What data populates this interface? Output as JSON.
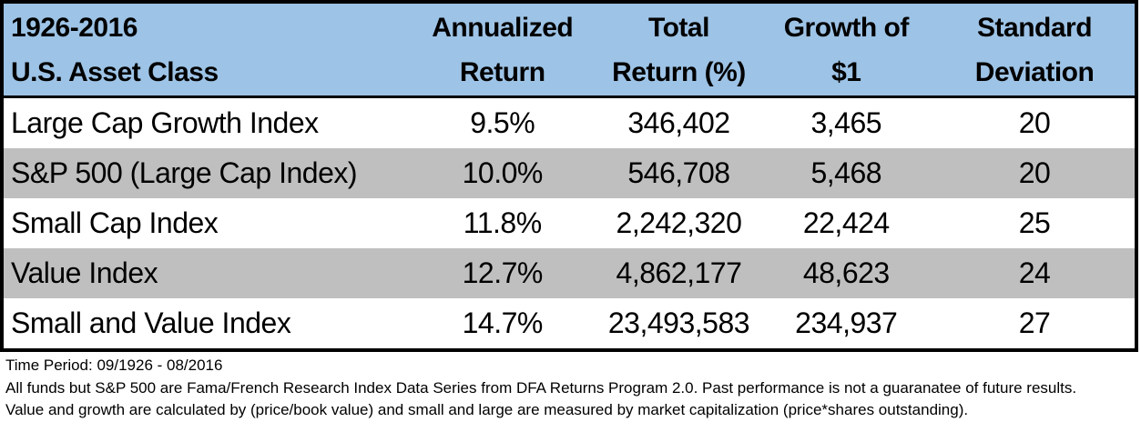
{
  "colors": {
    "header_bg": "#9DC3E6",
    "stripe_bg": "#BFBFBF",
    "row_bg": "#FFFFFF",
    "border": "#000000",
    "text": "#000000"
  },
  "chart_data": {
    "type": "table",
    "title": "1926-2016 U.S. Asset Class",
    "columns": [
      "1926-2016 U.S. Asset Class",
      "Annualized Return",
      "Total Return (%)",
      "Growth of $1",
      "Standard Deviation"
    ],
    "rows": [
      {
        "asset_class": "Large Cap Growth Index",
        "annualized_return_pct": 9.5,
        "total_return_pct": 346402,
        "growth_of_dollar": 3465,
        "standard_deviation": 20
      },
      {
        "asset_class": "S&P 500 (Large Cap Index)",
        "annualized_return_pct": 10.0,
        "total_return_pct": 546708,
        "growth_of_dollar": 5468,
        "standard_deviation": 20
      },
      {
        "asset_class": "Small Cap Index",
        "annualized_return_pct": 11.8,
        "total_return_pct": 2242320,
        "growth_of_dollar": 22424,
        "standard_deviation": 25
      },
      {
        "asset_class": "Value Index",
        "annualized_return_pct": 12.7,
        "total_return_pct": 4862177,
        "growth_of_dollar": 48623,
        "standard_deviation": 24
      },
      {
        "asset_class": "Small and Value Index",
        "annualized_return_pct": 14.7,
        "total_return_pct": 23493583,
        "growth_of_dollar": 234937,
        "standard_deviation": 27
      }
    ],
    "notes": [
      "Time Period: 09/1926 - 08/2016",
      "All funds but S&P 500 are Fama/French Research Index Data Series from DFA Returns Program 2.0. Past performance is not a guaranatee of future results.",
      "Value and growth are calculated by (price/book value) and small and large are measured by market capitalization (price*shares outstanding)."
    ]
  },
  "table": {
    "header": [
      {
        "line1": "1926-2016",
        "line2": "U.S. Asset Class"
      },
      {
        "line1": "Annualized",
        "line2": "Return"
      },
      {
        "line1": "Total",
        "line2": "Return (%)"
      },
      {
        "line1": "Growth of",
        "line2": "$1"
      },
      {
        "line1": "Standard",
        "line2": "Deviation"
      }
    ],
    "rows": [
      {
        "name": "Large Cap Growth Index",
        "annualized_return": "9.5%",
        "total_return": "346,402",
        "growth_of_1": "3,465",
        "standard_deviation": "20"
      },
      {
        "name": "S&P 500 (Large Cap Index)",
        "annualized_return": "10.0%",
        "total_return": "546,708",
        "growth_of_1": "5,468",
        "standard_deviation": "20"
      },
      {
        "name": "Small Cap Index",
        "annualized_return": "11.8%",
        "total_return": "2,242,320",
        "growth_of_1": "22,424",
        "standard_deviation": "25"
      },
      {
        "name": "Value Index",
        "annualized_return": "12.7%",
        "total_return": "4,862,177",
        "growth_of_1": "48,623",
        "standard_deviation": "24"
      },
      {
        "name": "Small and Value Index",
        "annualized_return": "14.7%",
        "total_return": "23,493,583",
        "growth_of_1": "234,937",
        "standard_deviation": "27"
      }
    ]
  },
  "footnotes": {
    "line1": "Time Period: 09/1926 - 08/2016",
    "line2": "All funds but S&P 500 are Fama/French Research Index Data Series from DFA Returns Program 2.0. Past performance is not a guaranatee of future results.",
    "line3": "Value and growth are calculated by (price/book value) and small and large are measured by market capitalization (price*shares outstanding)."
  }
}
